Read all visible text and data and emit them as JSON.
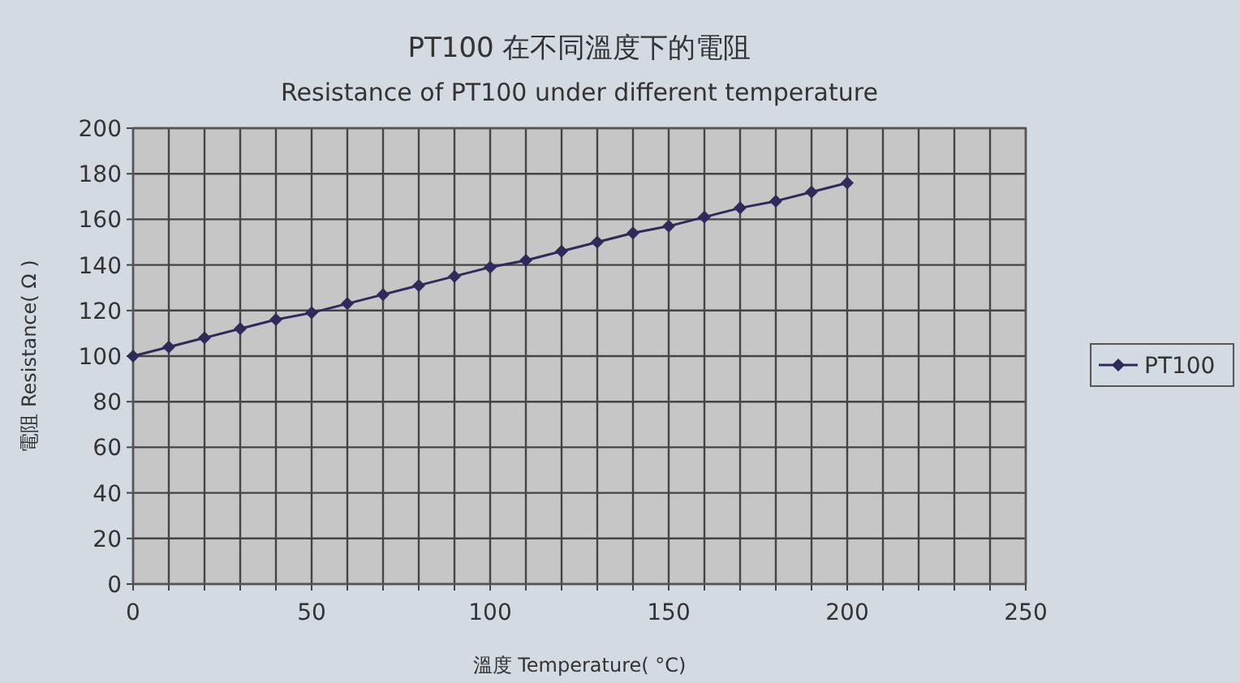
{
  "chart_data": {
    "type": "line",
    "title": "PT100 在不同溫度下的電阻",
    "subtitle": "Resistance of PT100 under different temperature",
    "xlabel": "溫度  Temperature( °C)",
    "ylabel": "電阻  Resistance( Ω )",
    "x": [
      0,
      10,
      20,
      30,
      40,
      50,
      60,
      70,
      80,
      90,
      100,
      110,
      120,
      130,
      140,
      150,
      160,
      170,
      180,
      190,
      200
    ],
    "series": [
      {
        "name": "PT100",
        "color": "#2e2a5a",
        "values": [
          100,
          104,
          108,
          112,
          116,
          119,
          123,
          127,
          131,
          135,
          139,
          142,
          146,
          150,
          154,
          157,
          161,
          165,
          168,
          172,
          176
        ]
      }
    ],
    "xlim": [
      0,
      250
    ],
    "xticks": [
      0,
      {
        "value": 10,
        "label": null
      },
      {
        "value": 20,
        "label": null
      },
      {
        "value": 30,
        "label": null
      },
      {
        "value": 40,
        "label": null
      },
      50,
      {
        "value": 60,
        "label": null
      },
      {
        "value": 70,
        "label": null
      },
      {
        "value": 80,
        "label": null
      },
      {
        "value": 90,
        "label": null
      },
      100,
      {
        "value": 110,
        "label": null
      },
      {
        "value": 120,
        "label": null
      },
      {
        "value": 130,
        "label": null
      },
      {
        "value": 140,
        "label": null
      },
      150,
      {
        "value": 160,
        "label": null
      },
      {
        "value": 170,
        "label": null
      },
      {
        "value": 180,
        "label": null
      },
      {
        "value": 190,
        "label": null
      },
      200,
      {
        "value": 210,
        "label": null
      },
      {
        "value": 220,
        "label": null
      },
      {
        "value": 230,
        "label": null
      },
      {
        "value": 240,
        "label": null
      },
      250
    ],
    "ylim": [
      0,
      200
    ],
    "yticks": [
      0,
      20,
      40,
      60,
      80,
      100,
      120,
      140,
      160,
      180,
      200
    ],
    "grid": true,
    "legend": "right",
    "marker": "diamond",
    "line_style": "solid"
  }
}
